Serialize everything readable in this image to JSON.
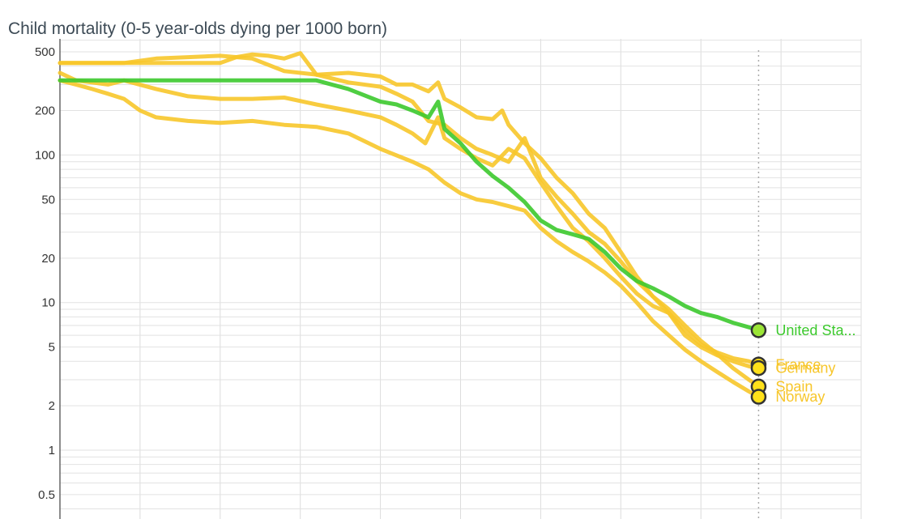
{
  "chart_data": {
    "type": "line",
    "title": "Child mortality (0-5 year-olds dying per 1000 born)",
    "xlabel": "",
    "ylabel": "",
    "y_scale": "log",
    "ylim": [
      0.4,
      600
    ],
    "xlim": [
      1800,
      2050
    ],
    "grid": true,
    "y_ticks": [
      "0.5",
      "1",
      "2",
      "5",
      "10",
      "20",
      "50",
      "100",
      "200",
      "500"
    ],
    "current_year": 2018,
    "series": [
      {
        "name": "United Sta...",
        "color": "#3cc92d",
        "marker_color": "#9be536",
        "points": [
          [
            1800,
            320
          ],
          [
            1880,
            320
          ],
          [
            1890,
            280
          ],
          [
            1900,
            230
          ],
          [
            1905,
            220
          ],
          [
            1910,
            200
          ],
          [
            1915,
            180
          ],
          [
            1918,
            230
          ],
          [
            1920,
            150
          ],
          [
            1925,
            120
          ],
          [
            1930,
            90
          ],
          [
            1935,
            72
          ],
          [
            1940,
            60
          ],
          [
            1945,
            48
          ],
          [
            1950,
            36
          ],
          [
            1955,
            31
          ],
          [
            1960,
            29
          ],
          [
            1965,
            27
          ],
          [
            1970,
            22
          ],
          [
            1975,
            17
          ],
          [
            1980,
            14
          ],
          [
            1985,
            12.5
          ],
          [
            1990,
            11
          ],
          [
            1995,
            9.5
          ],
          [
            2000,
            8.5
          ],
          [
            2005,
            8
          ],
          [
            2010,
            7.3
          ],
          [
            2015,
            6.8
          ],
          [
            2018,
            6.5
          ]
        ]
      },
      {
        "name": "France",
        "color": "#f7c62a",
        "marker_color": "#ffe01a",
        "points": [
          [
            1800,
            360
          ],
          [
            1805,
            320
          ],
          [
            1810,
            310
          ],
          [
            1815,
            300
          ],
          [
            1820,
            320
          ],
          [
            1830,
            280
          ],
          [
            1840,
            250
          ],
          [
            1850,
            240
          ],
          [
            1860,
            240
          ],
          [
            1870,
            245
          ],
          [
            1880,
            220
          ],
          [
            1890,
            200
          ],
          [
            1900,
            180
          ],
          [
            1905,
            160
          ],
          [
            1910,
            140
          ],
          [
            1914,
            120
          ],
          [
            1918,
            180
          ],
          [
            1920,
            130
          ],
          [
            1925,
            110
          ],
          [
            1930,
            95
          ],
          [
            1935,
            85
          ],
          [
            1940,
            110
          ],
          [
            1945,
            95
          ],
          [
            1950,
            65
          ],
          [
            1955,
            45
          ],
          [
            1960,
            32
          ],
          [
            1965,
            26
          ],
          [
            1970,
            20
          ],
          [
            1975,
            15
          ],
          [
            1980,
            11.5
          ],
          [
            1985,
            9.5
          ],
          [
            1990,
            8.5
          ],
          [
            1995,
            6.5
          ],
          [
            2000,
            5.2
          ],
          [
            2005,
            4.6
          ],
          [
            2010,
            4.2
          ],
          [
            2015,
            4
          ],
          [
            2018,
            3.8
          ]
        ]
      },
      {
        "name": "Germany",
        "color": "#f7c62a",
        "marker_color": "#ffe01a",
        "points": [
          [
            1800,
            420
          ],
          [
            1820,
            420
          ],
          [
            1830,
            450
          ],
          [
            1840,
            460
          ],
          [
            1850,
            470
          ],
          [
            1860,
            450
          ],
          [
            1870,
            370
          ],
          [
            1880,
            350
          ],
          [
            1890,
            310
          ],
          [
            1900,
            290
          ],
          [
            1905,
            260
          ],
          [
            1910,
            230
          ],
          [
            1915,
            170
          ],
          [
            1920,
            160
          ],
          [
            1925,
            130
          ],
          [
            1930,
            110
          ],
          [
            1935,
            100
          ],
          [
            1940,
            90
          ],
          [
            1945,
            130
          ],
          [
            1950,
            70
          ],
          [
            1955,
            52
          ],
          [
            1960,
            40
          ],
          [
            1965,
            30
          ],
          [
            1970,
            25
          ],
          [
            1975,
            19
          ],
          [
            1980,
            14
          ],
          [
            1985,
            11
          ],
          [
            1990,
            8.5
          ],
          [
            1995,
            6
          ],
          [
            2000,
            5
          ],
          [
            2005,
            4.4
          ],
          [
            2010,
            4
          ],
          [
            2015,
            3.7
          ],
          [
            2018,
            3.6
          ]
        ]
      },
      {
        "name": "Spain",
        "color": "#f7c62a",
        "marker_color": "#ffe01a",
        "points": [
          [
            1800,
            420
          ],
          [
            1850,
            420
          ],
          [
            1855,
            460
          ],
          [
            1860,
            480
          ],
          [
            1865,
            470
          ],
          [
            1870,
            450
          ],
          [
            1875,
            490
          ],
          [
            1880,
            350
          ],
          [
            1890,
            360
          ],
          [
            1900,
            340
          ],
          [
            1905,
            300
          ],
          [
            1910,
            300
          ],
          [
            1915,
            270
          ],
          [
            1918,
            310
          ],
          [
            1920,
            240
          ],
          [
            1925,
            210
          ],
          [
            1930,
            180
          ],
          [
            1935,
            175
          ],
          [
            1938,
            200
          ],
          [
            1940,
            160
          ],
          [
            1945,
            120
          ],
          [
            1950,
            95
          ],
          [
            1955,
            70
          ],
          [
            1960,
            55
          ],
          [
            1965,
            40
          ],
          [
            1970,
            32
          ],
          [
            1975,
            22
          ],
          [
            1980,
            15
          ],
          [
            1985,
            11
          ],
          [
            1990,
            9
          ],
          [
            1995,
            7
          ],
          [
            2000,
            5.5
          ],
          [
            2005,
            4.5
          ],
          [
            2010,
            3.6
          ],
          [
            2015,
            3
          ],
          [
            2018,
            2.7
          ]
        ]
      },
      {
        "name": "Norway",
        "color": "#f7c62a",
        "marker_color": "#ffe01a",
        "points": [
          [
            1800,
            320
          ],
          [
            1805,
            300
          ],
          [
            1810,
            280
          ],
          [
            1815,
            260
          ],
          [
            1820,
            240
          ],
          [
            1825,
            200
          ],
          [
            1830,
            180
          ],
          [
            1840,
            170
          ],
          [
            1850,
            165
          ],
          [
            1860,
            170
          ],
          [
            1870,
            160
          ],
          [
            1880,
            155
          ],
          [
            1890,
            140
          ],
          [
            1900,
            110
          ],
          [
            1910,
            90
          ],
          [
            1915,
            80
          ],
          [
            1920,
            65
          ],
          [
            1925,
            55
          ],
          [
            1930,
            50
          ],
          [
            1935,
            48
          ],
          [
            1940,
            45
          ],
          [
            1945,
            42
          ],
          [
            1950,
            32
          ],
          [
            1955,
            26
          ],
          [
            1960,
            22
          ],
          [
            1965,
            19
          ],
          [
            1970,
            16
          ],
          [
            1975,
            13
          ],
          [
            1980,
            10
          ],
          [
            1985,
            7.5
          ],
          [
            1990,
            6
          ],
          [
            1995,
            4.8
          ],
          [
            2000,
            4
          ],
          [
            2005,
            3.4
          ],
          [
            2010,
            2.9
          ],
          [
            2015,
            2.5
          ],
          [
            2018,
            2.3
          ]
        ]
      }
    ]
  }
}
